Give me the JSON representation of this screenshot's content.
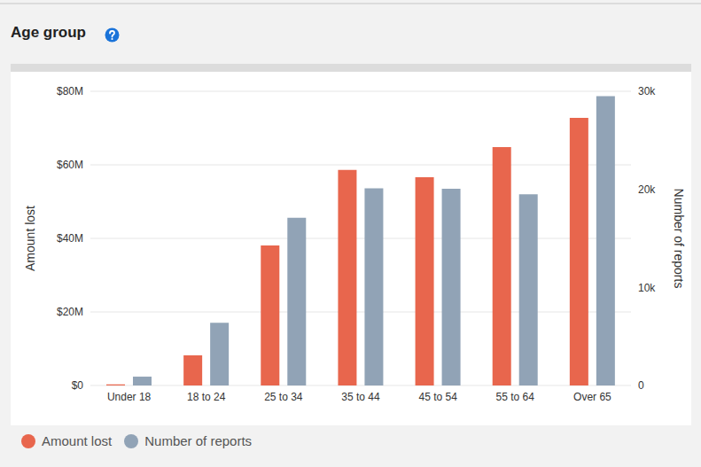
{
  "chart_data": {
    "type": "bar",
    "title": "Age group",
    "categories": [
      "Under 18",
      "18 to 24",
      "25 to 34",
      "35 to 44",
      "45 to 54",
      "55 to 64",
      "Over 65"
    ],
    "series": [
      {
        "name": "Amount lost",
        "color": "#e8664d",
        "values": [
          0.3,
          8.2,
          38.1,
          58.6,
          56.6,
          64.8,
          72.8
        ]
      },
      {
        "name": "Number of reports",
        "color": "#91a3b6",
        "axis": "y2",
        "values": [
          900,
          6400,
          17100,
          20100,
          20050,
          19500,
          29500
        ]
      }
    ],
    "y_label": "Amount lost",
    "y2_label": "Number of reports",
    "ylim": [
      0,
      80
    ],
    "yticks": [
      {
        "value": 0,
        "label": "$0"
      },
      {
        "value": 20,
        "label": "$20M"
      },
      {
        "value": 40,
        "label": "$40M"
      },
      {
        "value": 60,
        "label": "$60M"
      },
      {
        "value": 80,
        "label": "$80M"
      }
    ],
    "y2lim": [
      0,
      30000
    ],
    "y2ticks": [
      0,
      {
        "value": 10000,
        "label": "10k"
      },
      {
        "value": 20000,
        "label": "20k"
      },
      {
        "value": 30000,
        "label": "30k"
      }
    ],
    "grid": true,
    "legend": "bottom"
  }
}
